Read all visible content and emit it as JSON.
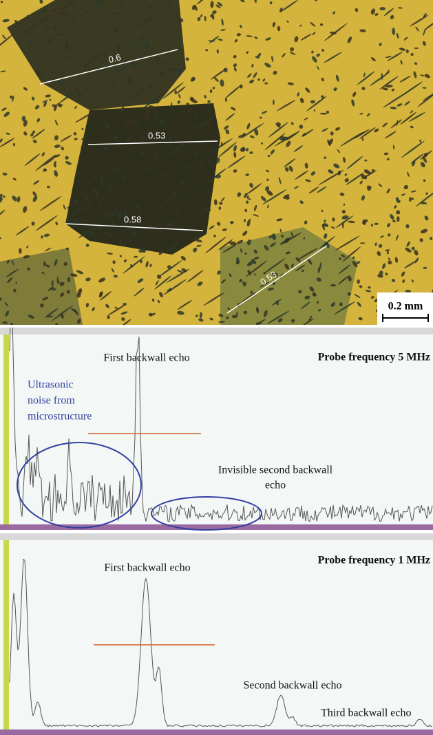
{
  "micrograph": {
    "measurements": [
      "0.6",
      "0.53",
      "0.58",
      "0.53"
    ],
    "scale_bar": "0.2 mm"
  },
  "panel_5mhz": {
    "title": "Probe frequency 5  MHz",
    "first_echo": "First backwall echo",
    "noise_label": [
      "Ultrasonic",
      "noise from",
      "microstructure"
    ],
    "second_echo": [
      "Invisible second backwall",
      "echo"
    ]
  },
  "panel_1mhz": {
    "title": "Probe frequency 1 MHz",
    "first_echo": "First backwall echo",
    "second_echo": "Second backwall echo",
    "third_echo": "Third backwall echo"
  }
}
